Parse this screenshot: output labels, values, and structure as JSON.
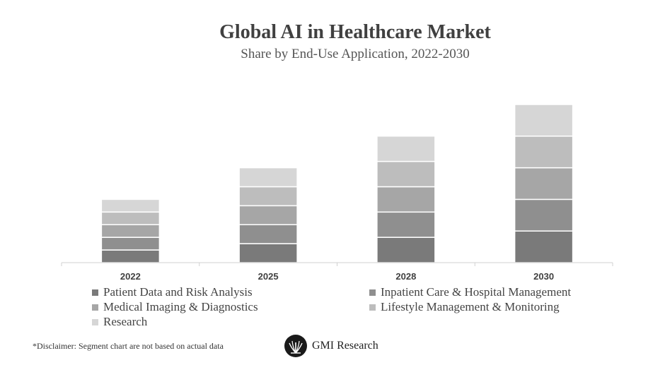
{
  "header": {
    "title": "Global AI in Healthcare Market",
    "subtitle": "Share by End-Use Application, 2022-2030"
  },
  "chart_data": {
    "type": "bar",
    "stacked": true,
    "title": "Global AI in Healthcare Market",
    "subtitle": "Share by End-Use Application, 2022-2030",
    "categories": [
      "2022",
      "2025",
      "2028",
      "2030"
    ],
    "series": [
      {
        "name": "Patient Data and Risk Analysis",
        "color": "#7a7a7a",
        "values": [
          18,
          27,
          36,
          45
        ]
      },
      {
        "name": "Inpatient Care & Hospital Management",
        "color": "#8f8f8f",
        "values": [
          18,
          27,
          36,
          45
        ]
      },
      {
        "name": "Medical Imaging & Diagnostics",
        "color": "#a6a6a6",
        "values": [
          18,
          27,
          36,
          45
        ]
      },
      {
        "name": "Lifestyle Management & Monitoring",
        "color": "#bdbdbd",
        "values": [
          18,
          27,
          36,
          45
        ]
      },
      {
        "name": "Research",
        "color": "#d6d6d6",
        "values": [
          18,
          27,
          36,
          45
        ]
      }
    ],
    "legend_position": "bottom",
    "grid": false,
    "ylim": [
      0,
      225
    ]
  },
  "footer": {
    "disclaimer": "*Disclaimer:  Segment chart are not based on actual data",
    "brand": "GMI Research",
    "brand_icon": "gmi-research-logo-icon"
  }
}
